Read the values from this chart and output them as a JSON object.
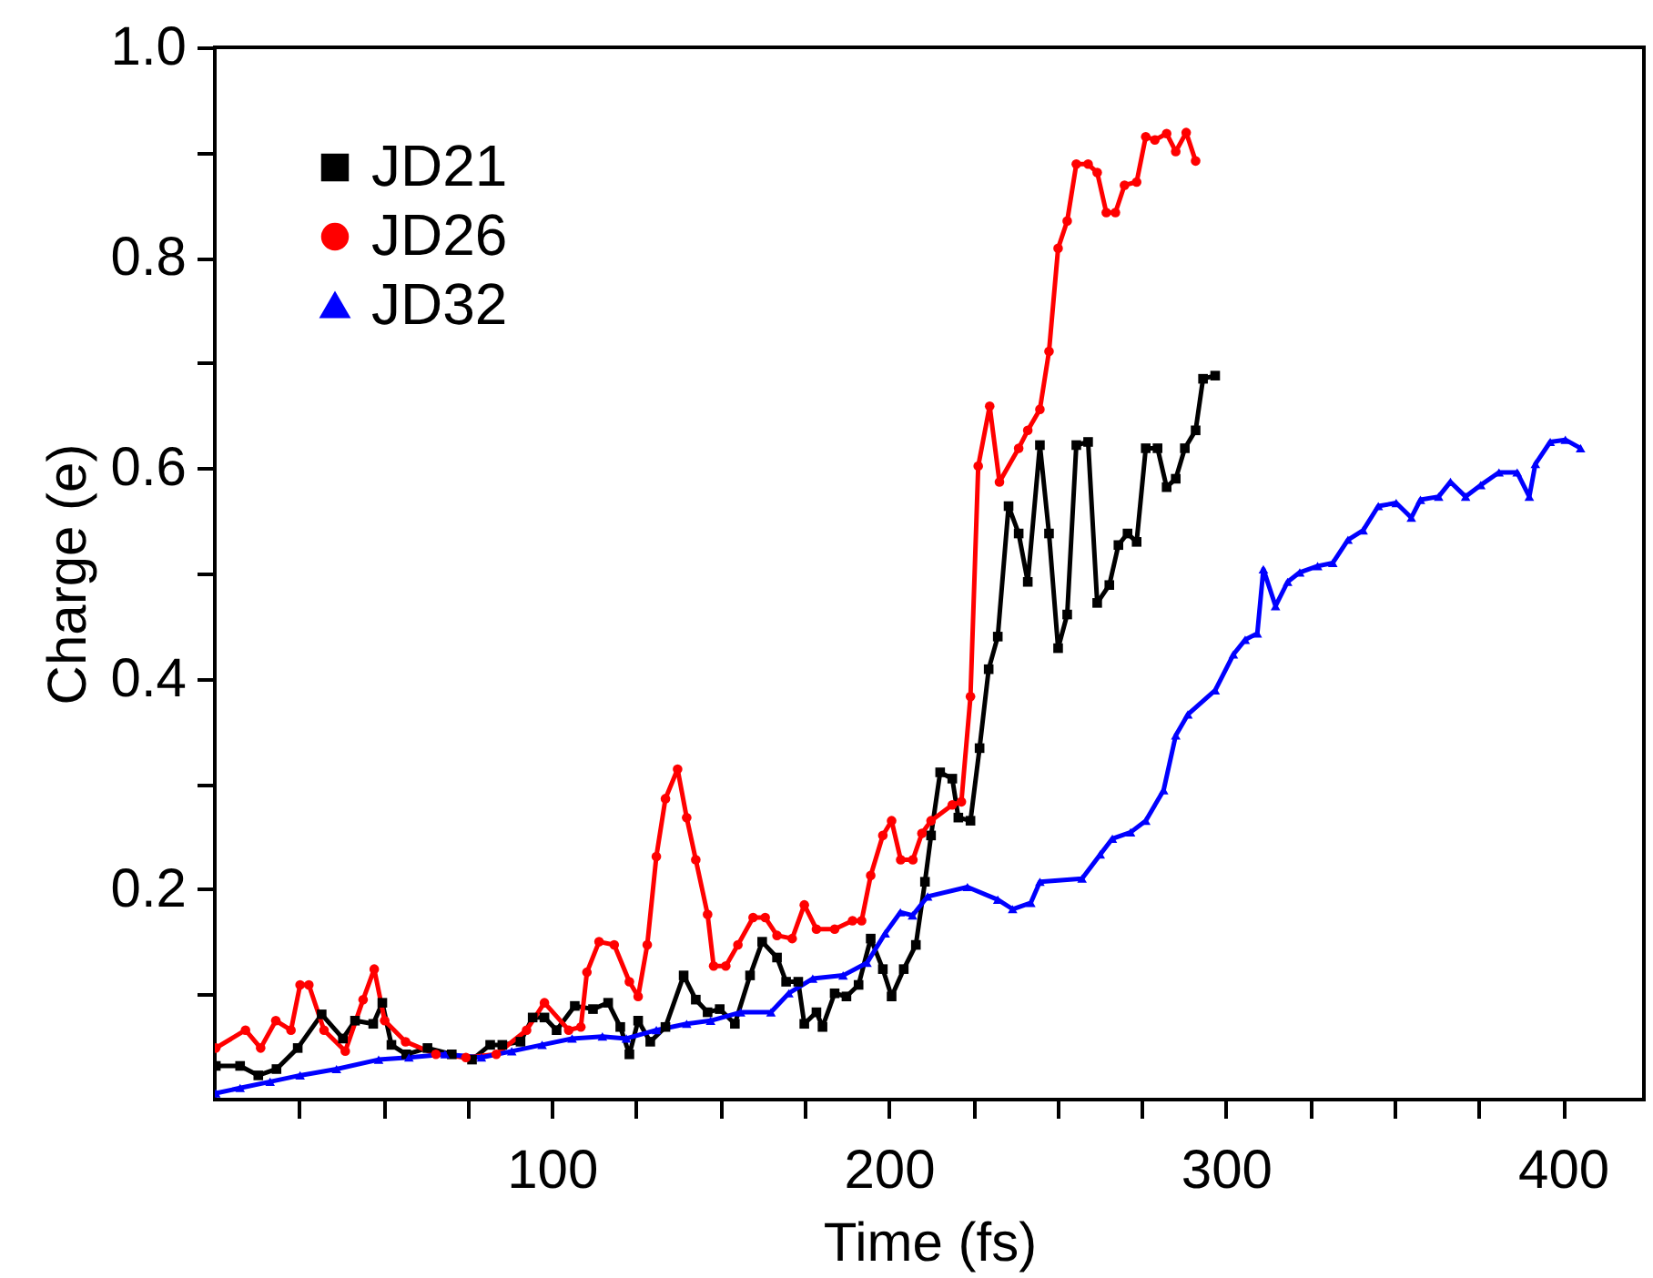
{
  "chart_data": {
    "type": "line",
    "xlabel": "Time (fs)",
    "ylabel": "Charge (e)",
    "xlim": [
      0,
      424
    ],
    "ylim": [
      0,
      1.0
    ],
    "xticks": [
      {
        "value": 25,
        "label": null
      },
      {
        "value": 50,
        "label": null
      },
      {
        "value": 75,
        "label": null
      },
      100,
      {
        "value": 125,
        "label": null
      },
      {
        "value": 150,
        "label": null
      },
      {
        "value": 175,
        "label": null
      },
      200,
      {
        "value": 225,
        "label": null
      },
      {
        "value": 250,
        "label": null
      },
      {
        "value": 275,
        "label": null
      },
      300,
      {
        "value": 325,
        "label": null
      },
      {
        "value": 350,
        "label": null
      },
      {
        "value": 375,
        "label": null
      },
      400
    ],
    "yticks": [
      {
        "value": 0.1,
        "label": null
      },
      0.2,
      {
        "value": 0.3,
        "label": null
      },
      0.4,
      {
        "value": 0.5,
        "label": null
      },
      0.6,
      {
        "value": 0.7,
        "label": null
      },
      0.8,
      {
        "value": 0.9,
        "label": null
      },
      {
        "value": 1.0,
        "label": "1.0"
      }
    ],
    "grid": false,
    "legend": "top left",
    "line_style": "solid",
    "series": [
      {
        "name": "JD21",
        "color": "#000000",
        "marker": "square",
        "x": [
          0.3,
          7.5,
          12.9,
          18.3,
          24.6,
          31.7,
          38,
          41.6,
          47,
          49.7,
          52.4,
          56.8,
          63.1,
          70.3,
          76.3,
          81.7,
          85.3,
          90.7,
          94.3,
          97.8,
          101.4,
          106.8,
          112.2,
          116.7,
          120.3,
          123,
          125.6,
          129.2,
          133.7,
          139.1,
          142.7,
          146.2,
          149.8,
          154.3,
          158.8,
          162.4,
          166.8,
          169.5,
          173.1,
          174.9,
          178.5,
          180.3,
          183.9,
          187.4,
          191,
          194.6,
          198.2,
          200.8,
          204.4,
          208,
          210.7,
          212.5,
          215.2,
          218.8,
          220.6,
          224.2,
          226.9,
          229.6,
          232.3,
          235.5,
          238.5,
          241.2,
          244.8,
          247.5,
          250.2,
          252.9,
          255.6,
          259.1,
          261.8,
          265.4,
          268.1,
          270.8,
          273.5,
          276.2,
          279.7,
          282.4,
          285.1,
          287.8,
          291,
          293.2,
          296.8
        ],
        "values": [
          0.032,
          0.032,
          0.023,
          0.029,
          0.049,
          0.081,
          0.058,
          0.075,
          0.072,
          0.092,
          0.052,
          0.043,
          0.049,
          0.043,
          0.038,
          0.052,
          0.052,
          0.055,
          0.078,
          0.078,
          0.066,
          0.089,
          0.086,
          0.092,
          0.069,
          0.043,
          0.075,
          0.055,
          0.069,
          0.118,
          0.095,
          0.083,
          0.086,
          0.072,
          0.118,
          0.15,
          0.135,
          0.112,
          0.112,
          0.072,
          0.083,
          0.069,
          0.101,
          0.098,
          0.109,
          0.153,
          0.124,
          0.098,
          0.124,
          0.147,
          0.207,
          0.251,
          0.311,
          0.305,
          0.268,
          0.265,
          0.334,
          0.409,
          0.44,
          0.564,
          0.538,
          0.492,
          0.622,
          0.538,
          0.429,
          0.461,
          0.622,
          0.625,
          0.472,
          0.489,
          0.527,
          0.538,
          0.53,
          0.619,
          0.619,
          0.582,
          0.59,
          0.619,
          0.636,
          0.685,
          0.688
        ]
      },
      {
        "name": "JD26",
        "color": "#ff0000",
        "marker": "circle",
        "x": [
          0.3,
          9.1,
          13.6,
          18.1,
          22.6,
          25.3,
          27.9,
          32.4,
          38.7,
          44,
          47.3,
          50.4,
          56.6,
          65.6,
          74.5,
          83.5,
          92.5,
          97.8,
          105,
          108.6,
          110.4,
          114,
          118.5,
          123,
          125.6,
          128.3,
          131,
          133.7,
          137.3,
          140,
          142.7,
          146.2,
          148,
          151.6,
          155.2,
          159.7,
          163.3,
          166.8,
          171.3,
          174.9,
          178.5,
          183.9,
          189.2,
          191.9,
          194.6,
          198.2,
          200.8,
          203.5,
          207.1,
          209.8,
          212.5,
          218.8,
          221.5,
          224.2,
          226.5,
          229.9,
          232.8,
          238.5,
          241.2,
          244.8,
          247.5,
          250.2,
          252.9,
          255.6,
          259.1,
          261.8,
          264.5,
          267.2,
          269.9,
          273.5,
          276.2,
          278.9,
          282.4,
          285.1,
          288.2,
          291
        ],
        "values": [
          0.049,
          0.066,
          0.049,
          0.075,
          0.066,
          0.109,
          0.109,
          0.066,
          0.046,
          0.095,
          0.124,
          0.075,
          0.055,
          0.043,
          0.04,
          0.043,
          0.066,
          0.092,
          0.066,
          0.069,
          0.121,
          0.15,
          0.147,
          0.112,
          0.098,
          0.147,
          0.231,
          0.286,
          0.314,
          0.268,
          0.228,
          0.176,
          0.127,
          0.127,
          0.147,
          0.173,
          0.173,
          0.156,
          0.153,
          0.185,
          0.162,
          0.162,
          0.17,
          0.17,
          0.213,
          0.251,
          0.265,
          0.228,
          0.228,
          0.253,
          0.265,
          0.28,
          0.283,
          0.383,
          0.602,
          0.659,
          0.587,
          0.619,
          0.636,
          0.656,
          0.711,
          0.809,
          0.835,
          0.889,
          0.889,
          0.881,
          0.843,
          0.843,
          0.869,
          0.872,
          0.915,
          0.912,
          0.918,
          0.901,
          0.919,
          0.892
        ]
      },
      {
        "name": "JD32",
        "color": "#0000ff",
        "marker": "triangle",
        "x": [
          0.3,
          7.5,
          16.4,
          25.3,
          36.1,
          48.6,
          57.6,
          68.3,
          79.1,
          88.1,
          97.1,
          106,
          115,
          122.1,
          131,
          140,
          147.1,
          156,
          165,
          170.3,
          177.4,
          186.4,
          193.5,
          198.9,
          203.4,
          207,
          211.5,
          223.3,
          232.3,
          236.7,
          242.1,
          244.8,
          257.3,
          262.7,
          266.3,
          271.7,
          276.2,
          281.5,
          285.1,
          288.7,
          296.8,
          302.2,
          305.7,
          309.3,
          311.1,
          314.7,
          318.3,
          321.9,
          327.2,
          331.7,
          336.2,
          340.7,
          345.2,
          350.5,
          355,
          357.7,
          363.1,
          366.6,
          371.1,
          375.6,
          381,
          386.4,
          390,
          391.8,
          396.2,
          400.7,
          405.2
        ],
        "values": [
          0.006,
          0.011,
          0.017,
          0.023,
          0.029,
          0.038,
          0.04,
          0.043,
          0.04,
          0.046,
          0.052,
          0.058,
          0.06,
          0.058,
          0.066,
          0.072,
          0.075,
          0.083,
          0.083,
          0.101,
          0.115,
          0.118,
          0.13,
          0.158,
          0.178,
          0.175,
          0.193,
          0.202,
          0.19,
          0.181,
          0.187,
          0.207,
          0.21,
          0.233,
          0.248,
          0.254,
          0.265,
          0.294,
          0.346,
          0.366,
          0.389,
          0.423,
          0.437,
          0.443,
          0.504,
          0.469,
          0.492,
          0.501,
          0.507,
          0.51,
          0.532,
          0.541,
          0.564,
          0.567,
          0.553,
          0.57,
          0.573,
          0.587,
          0.573,
          0.584,
          0.596,
          0.596,
          0.573,
          0.604,
          0.625,
          0.627,
          0.619
        ]
      }
    ]
  }
}
